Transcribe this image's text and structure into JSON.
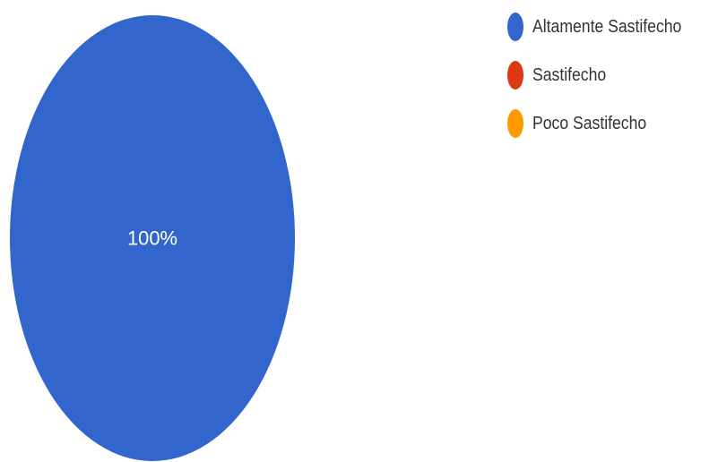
{
  "chart_data": {
    "type": "pie",
    "categories": [
      "Altamente Sastifecho",
      "Sastifecho",
      "Poco Sastifecho"
    ],
    "values": [
      100,
      0,
      0
    ],
    "colors": [
      "#3366cc",
      "#dc3912",
      "#ff9900"
    ],
    "slice_labels": [
      "100%"
    ],
    "legend_position": "top-right"
  }
}
